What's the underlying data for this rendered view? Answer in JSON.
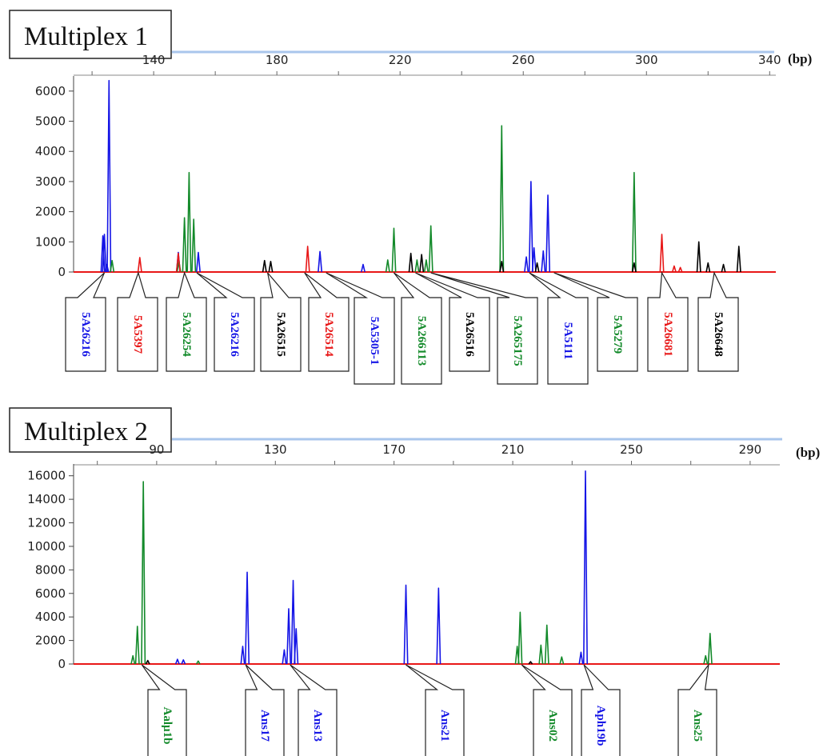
{
  "colors": {
    "blue": "#1515e6",
    "green": "#138a2a",
    "red": "#e81717",
    "black": "#000000",
    "topbar": "#a9c6ec"
  },
  "chart_data": [
    {
      "type": "line",
      "title": "Multiplex 1",
      "unit": "(bp)",
      "x_ticks": [
        140,
        180,
        220,
        260,
        300,
        340
      ],
      "xlim": [
        114,
        342
      ],
      "y_ticks": [
        0,
        1000,
        2000,
        3000,
        4000,
        5000,
        6000
      ],
      "ylim": [
        0,
        6500
      ],
      "series": [
        {
          "color": "blue",
          "peaks": [
            [
              123.5,
              1200
            ],
            [
              124,
              1250
            ],
            [
              124.8,
              250
            ],
            [
              125.5,
              6350
            ],
            [
              148,
              650
            ],
            [
              154.5,
              650
            ],
            [
              194,
              680
            ],
            [
              208,
              250
            ],
            [
              261,
              500
            ],
            [
              262.5,
              3000
            ],
            [
              263.5,
              800
            ],
            [
              266.5,
              700
            ],
            [
              268,
              2550
            ]
          ]
        },
        {
          "color": "green",
          "peaks": [
            [
              126.5,
              380
            ],
            [
              148.2,
              350
            ],
            [
              150,
              1800
            ],
            [
              151.5,
              3300
            ],
            [
              153,
              1750
            ],
            [
              216,
              400
            ],
            [
              218,
              1450
            ],
            [
              225.5,
              400
            ],
            [
              228.5,
              400
            ],
            [
              230,
              1530
            ],
            [
              253,
              4850
            ],
            [
              296,
              3300
            ]
          ]
        },
        {
          "color": "red",
          "peaks": [
            [
              135.5,
              480
            ],
            [
              148,
              620
            ],
            [
              190,
              850
            ],
            [
              305,
              1250
            ],
            [
              309,
              200
            ],
            [
              311,
              150
            ]
          ]
        },
        {
          "color": "black",
          "peaks": [
            [
              176,
              380
            ],
            [
              178,
              350
            ],
            [
              223.5,
              620
            ],
            [
              227,
              580
            ],
            [
              253,
              350
            ],
            [
              264.5,
              300
            ],
            [
              296,
              300
            ],
            [
              317,
              1000
            ],
            [
              320,
              300
            ],
            [
              325,
              250
            ],
            [
              330,
              850
            ]
          ]
        }
      ],
      "markers": [
        {
          "label": "5A26216",
          "color": "blue",
          "at": 124
        },
        {
          "label": "5A5397",
          "color": "red",
          "at": 135
        },
        {
          "label": "5A26254",
          "color": "green",
          "at": 150
        },
        {
          "label": "5A26216",
          "color": "blue",
          "at": 154
        },
        {
          "label": "5A26515",
          "color": "black",
          "at": 177
        },
        {
          "label": "5A26514",
          "color": "red",
          "at": 189
        },
        {
          "label": "5A5305-1",
          "color": "blue",
          "at": 196
        },
        {
          "label": "5A266113",
          "color": "green",
          "at": 218
        },
        {
          "label": "5A26516",
          "color": "black",
          "at": 225
        },
        {
          "label": "5A265175",
          "color": "green",
          "at": 230
        },
        {
          "label": "5A5111",
          "color": "blue",
          "at": 262
        },
        {
          "label": "5A5279",
          "color": "green",
          "at": 270
        },
        {
          "label": "5A26681",
          "color": "red",
          "at": 305
        },
        {
          "label": "5A26648",
          "color": "black",
          "at": 322
        }
      ]
    },
    {
      "type": "line",
      "title": "Multiplex 2",
      "unit": "(bp)",
      "x_ticks": [
        90,
        130,
        170,
        210,
        250,
        290
      ],
      "xlim": [
        62,
        300
      ],
      "y_ticks": [
        0,
        2000,
        4000,
        6000,
        8000,
        10000,
        12000,
        14000,
        16000
      ],
      "ylim": [
        0,
        17000
      ],
      "series": [
        {
          "color": "blue",
          "peaks": [
            [
              97,
              400
            ],
            [
              99,
              350
            ],
            [
              119,
              1500
            ],
            [
              120.5,
              7800
            ],
            [
              133,
              1200
            ],
            [
              134.5,
              4700
            ],
            [
              136,
              7100
            ],
            [
              137,
              3000
            ],
            [
              174,
              6700
            ],
            [
              185,
              6450
            ],
            [
              234.5,
              16400
            ],
            [
              233,
              1000
            ]
          ]
        },
        {
          "color": "green",
          "peaks": [
            [
              82,
              700
            ],
            [
              83.5,
              3200
            ],
            [
              85.5,
              15500
            ],
            [
              104,
              250
            ],
            [
              211.5,
              1500
            ],
            [
              212.5,
              4400
            ],
            [
              219.5,
              1600
            ],
            [
              221.5,
              3300
            ],
            [
              226.5,
              600
            ],
            [
              275,
              700
            ],
            [
              276.5,
              2600
            ]
          ]
        },
        {
          "color": "red",
          "peaks": []
        },
        {
          "color": "black",
          "peaks": [
            [
              87,
              300
            ],
            [
              216,
              200
            ]
          ]
        }
      ],
      "markers": [
        {
          "label": "Aalµ1b",
          "color": "green",
          "at": 85
        },
        {
          "label": "Ans17",
          "color": "blue",
          "at": 120
        },
        {
          "label": "Ans13",
          "color": "blue",
          "at": 135
        },
        {
          "label": "Ans21",
          "color": "blue",
          "at": 174
        },
        {
          "label": "Ans02",
          "color": "green",
          "at": 213
        },
        {
          "label": "Aph19b",
          "color": "blue",
          "at": 234
        },
        {
          "label": "Ans25",
          "color": "green",
          "at": 276
        }
      ]
    }
  ]
}
